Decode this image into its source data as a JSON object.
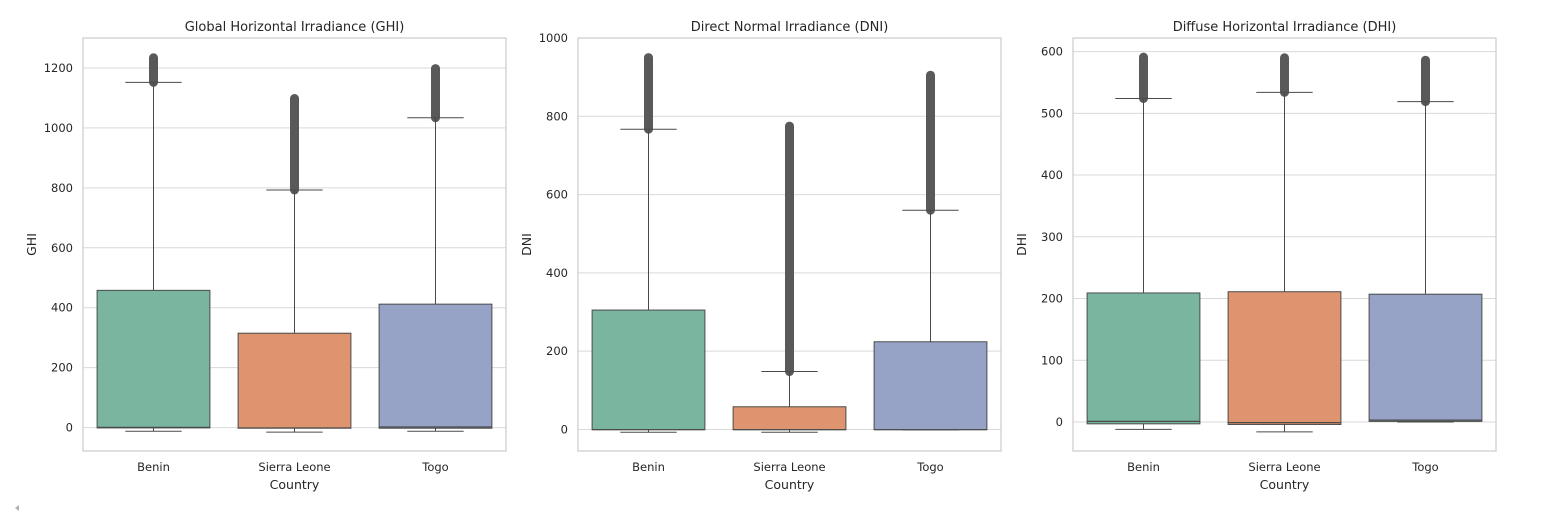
{
  "chart_data": [
    {
      "type": "box",
      "title": "Global Horizontal Irradiance (GHI)",
      "xlabel": "Country",
      "ylabel": "GHI",
      "categories": [
        "Benin",
        "Sierra Leone",
        "Togo"
      ],
      "ylim": [
        -78,
        1300
      ],
      "yticks": [
        0,
        200,
        400,
        600,
        800,
        1000,
        1200
      ],
      "grid": true,
      "boxes": [
        {
          "category": "Benin",
          "color": "#7ab69f",
          "whisker_low": -12,
          "q1": -1,
          "median": 1,
          "q3": 458,
          "whisker_high": 1152,
          "outlier_low": 1152,
          "outlier_high": 1234
        },
        {
          "category": "Sierra Leone",
          "color": "#de946e",
          "whisker_low": -15,
          "q1": -2,
          "median": -1,
          "q3": 315,
          "whisker_high": 793,
          "outlier_low": 793,
          "outlier_high": 1098
        },
        {
          "category": "Togo",
          "color": "#97a3c6",
          "whisker_low": -12,
          "q1": -2,
          "median": 2,
          "q3": 412,
          "whisker_high": 1034,
          "outlier_low": 1034,
          "outlier_high": 1198
        }
      ]
    },
    {
      "type": "box",
      "title": "Direct Normal Irradiance (DNI)",
      "xlabel": "Country",
      "ylabel": "DNI",
      "categories": [
        "Benin",
        "Sierra Leone",
        "Togo"
      ],
      "ylim": [
        -55,
        1000
      ],
      "yticks": [
        0,
        200,
        400,
        600,
        800,
        1000
      ],
      "grid": true,
      "boxes": [
        {
          "category": "Benin",
          "color": "#7ab69f",
          "whisker_low": -7,
          "q1": -0.5,
          "median": -0.5,
          "q3": 305,
          "whisker_high": 767,
          "outlier_low": 767,
          "outlier_high": 950
        },
        {
          "category": "Sierra Leone",
          "color": "#de946e",
          "whisker_low": -7,
          "q1": -0.5,
          "median": -0.5,
          "q3": 58,
          "whisker_high": 148,
          "outlier_low": 148,
          "outlier_high": 775
        },
        {
          "category": "Togo",
          "color": "#97a3c6",
          "whisker_low": -1,
          "q1": -0.5,
          "median": -0.5,
          "q3": 224,
          "whisker_high": 560,
          "outlier_low": 560,
          "outlier_high": 905
        }
      ]
    },
    {
      "type": "box",
      "title": "Diffuse Horizontal Irradiance (DHI)",
      "xlabel": "Country",
      "ylabel": "DHI",
      "categories": [
        "Benin",
        "Sierra Leone",
        "Togo"
      ],
      "ylim": [
        -47,
        622
      ],
      "yticks": [
        0,
        100,
        200,
        300,
        400,
        500,
        600
      ],
      "grid": true,
      "boxes": [
        {
          "category": "Benin",
          "color": "#7ab69f",
          "whisker_low": -12,
          "q1": -3,
          "median": 1,
          "q3": 209,
          "whisker_high": 524,
          "outlier_low": 524,
          "outlier_high": 591
        },
        {
          "category": "Sierra Leone",
          "color": "#de946e",
          "whisker_low": -16,
          "q1": -4,
          "median": -1,
          "q3": 211,
          "whisker_high": 534,
          "outlier_low": 534,
          "outlier_high": 590
        },
        {
          "category": "Togo",
          "color": "#97a3c6",
          "whisker_low": 0,
          "q1": 1,
          "median": 3,
          "q3": 207,
          "whisker_high": 519,
          "outlier_low": 519,
          "outlier_high": 586
        }
      ]
    }
  ]
}
